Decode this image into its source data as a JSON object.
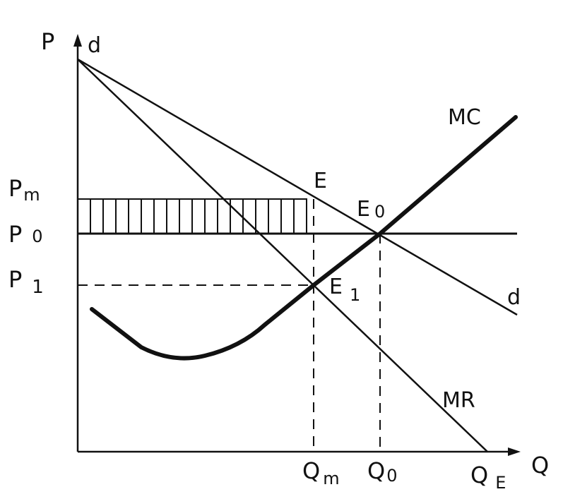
{
  "diagram": {
    "axis_labels": {
      "price": "P",
      "quantity": "Q"
    },
    "curve_labels": {
      "demand_top": "d",
      "demand_bottom": "d",
      "marginal_cost": "MC",
      "marginal_revenue": "MR"
    },
    "price_labels": {
      "monopoly": {
        "main": "P",
        "sub": "m"
      },
      "competitive": {
        "main": "P",
        "sub": "0"
      },
      "one": {
        "main": "P",
        "sub": "1"
      }
    },
    "quantity_labels": {
      "monopoly": {
        "main": "Q",
        "sub": "m"
      },
      "competitive": {
        "main": "Q",
        "sub": "0"
      },
      "extreme": {
        "main": "Q",
        "sub": "E"
      }
    },
    "point_labels": {
      "E": {
        "main": "E",
        "sub": ""
      },
      "E0": {
        "main": "E",
        "sub": "0"
      },
      "E1": {
        "main": "E",
        "sub": "1"
      }
    },
    "colors": {
      "ink": "#111111",
      "background": "#ffffff"
    }
  }
}
